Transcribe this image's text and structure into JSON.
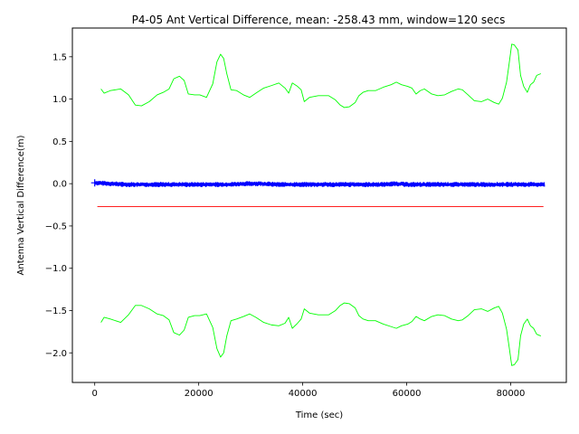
{
  "chart_data": {
    "type": "line",
    "title": "P4-05 Ant Vertical Difference, mean: -258.43 mm, window=120 secs",
    "xlabel": "Time (sec)",
    "ylabel": "Antenna Vertical Difference(m)",
    "xlim": [
      -4300,
      90700
    ],
    "ylim": [
      -2.35,
      1.84
    ],
    "x_ticks": [
      0,
      20000,
      40000,
      60000,
      80000
    ],
    "x_tick_labels": [
      "0",
      "20000",
      "40000",
      "60000",
      "80000"
    ],
    "y_ticks": [
      1.5,
      1.0,
      0.5,
      0.0,
      -0.5,
      -1.0,
      -1.5,
      -2.0
    ],
    "y_tick_labels": [
      "1.5",
      "1.0",
      "0.5",
      "0.0",
      "−0.5",
      "−1.0",
      "−1.5",
      "−2.0"
    ],
    "grid": false,
    "series": [
      {
        "color": "#00ff00",
        "x": [
          1200,
          1800,
          3000,
          5000,
          6500,
          7800,
          9000,
          10500,
          12000,
          13200,
          14300,
          15200,
          16300,
          17200,
          18000,
          19200,
          20200,
          21500,
          22700,
          23500,
          24200,
          24800,
          25400,
          26200,
          27300,
          28600,
          29800,
          31000,
          32500,
          34000,
          35400,
          36600,
          37300,
          38000,
          39000,
          39700,
          40300,
          41300,
          43000,
          45000,
          46300,
          47200,
          48000,
          49000,
          50100,
          50800,
          51600,
          52600,
          54000,
          55500,
          57000,
          58000,
          59000,
          60200,
          61000,
          61800,
          62600,
          63400,
          64800,
          66000,
          67300,
          68600,
          69900,
          70700,
          71800,
          73000,
          74400,
          75600,
          76800,
          77700,
          78400,
          79200,
          79700,
          80200,
          80700,
          81400,
          81900,
          82500,
          83200,
          83800,
          84400,
          85000,
          85800
        ],
        "values": [
          1.12,
          1.07,
          1.1,
          1.12,
          1.05,
          0.93,
          0.92,
          0.97,
          1.05,
          1.08,
          1.12,
          1.24,
          1.27,
          1.22,
          1.06,
          1.05,
          1.05,
          1.02,
          1.18,
          1.44,
          1.53,
          1.48,
          1.3,
          1.11,
          1.1,
          1.05,
          1.02,
          1.07,
          1.13,
          1.16,
          1.19,
          1.13,
          1.07,
          1.19,
          1.15,
          1.11,
          0.97,
          1.02,
          1.04,
          1.04,
          0.99,
          0.93,
          0.9,
          0.91,
          0.96,
          1.04,
          1.08,
          1.1,
          1.1,
          1.14,
          1.17,
          1.2,
          1.17,
          1.15,
          1.13,
          1.06,
          1.1,
          1.12,
          1.06,
          1.04,
          1.05,
          1.09,
          1.12,
          1.11,
          1.05,
          0.98,
          0.97,
          1.0,
          0.96,
          0.94,
          1.01,
          1.2,
          1.42,
          1.65,
          1.64,
          1.58,
          1.28,
          1.15,
          1.08,
          1.17,
          1.2,
          1.28,
          1.3
        ]
      },
      {
        "color": "#00ff00",
        "x": [
          1200,
          1800,
          3000,
          5000,
          6500,
          7800,
          9000,
          10500,
          12000,
          13200,
          14300,
          15200,
          16300,
          17200,
          18000,
          19200,
          20200,
          21500,
          22700,
          23500,
          24200,
          24800,
          25400,
          26200,
          27300,
          28600,
          29800,
          31000,
          32500,
          34000,
          35400,
          36600,
          37300,
          38000,
          39000,
          39700,
          40300,
          41300,
          43000,
          45000,
          46300,
          47200,
          48000,
          49000,
          50100,
          50800,
          51600,
          52600,
          54000,
          55500,
          57000,
          58000,
          59000,
          60200,
          61000,
          61800,
          62600,
          63400,
          64800,
          66000,
          67300,
          68600,
          69900,
          70700,
          71800,
          73000,
          74400,
          75600,
          76800,
          77700,
          78400,
          79200,
          79700,
          80200,
          80700,
          81400,
          81900,
          82500,
          83200,
          83800,
          84400,
          85000,
          85800
        ],
        "values": [
          -1.64,
          -1.58,
          -1.6,
          -1.64,
          -1.55,
          -1.44,
          -1.44,
          -1.48,
          -1.54,
          -1.56,
          -1.61,
          -1.76,
          -1.79,
          -1.73,
          -1.58,
          -1.56,
          -1.56,
          -1.54,
          -1.7,
          -1.95,
          -2.05,
          -2.0,
          -1.8,
          -1.62,
          -1.6,
          -1.57,
          -1.54,
          -1.58,
          -1.64,
          -1.67,
          -1.68,
          -1.65,
          -1.58,
          -1.71,
          -1.65,
          -1.6,
          -1.48,
          -1.53,
          -1.55,
          -1.55,
          -1.5,
          -1.44,
          -1.41,
          -1.42,
          -1.47,
          -1.56,
          -1.6,
          -1.62,
          -1.62,
          -1.66,
          -1.69,
          -1.71,
          -1.68,
          -1.66,
          -1.63,
          -1.57,
          -1.6,
          -1.62,
          -1.57,
          -1.55,
          -1.56,
          -1.6,
          -1.62,
          -1.61,
          -1.56,
          -1.49,
          -1.48,
          -1.51,
          -1.47,
          -1.45,
          -1.53,
          -1.72,
          -1.93,
          -2.15,
          -2.14,
          -2.08,
          -1.8,
          -1.66,
          -1.6,
          -1.68,
          -1.71,
          -1.78,
          -1.8
        ]
      },
      {
        "color": "#ff0000",
        "x": [
          500,
          86300
        ],
        "values": [
          -0.27,
          -0.27
        ]
      },
      {
        "color": "#0000ff",
        "x": [
          0,
          3000,
          6000,
          10000,
          15000,
          20000,
          25000,
          30000,
          32000,
          35000,
          40000,
          45000,
          50000,
          55000,
          58000,
          60000,
          65000,
          70000,
          75000,
          80000,
          86500
        ],
        "values": [
          0.01,
          0.0,
          -0.01,
          -0.01,
          -0.01,
          -0.01,
          -0.01,
          0.0,
          0.0,
          -0.01,
          -0.01,
          -0.01,
          -0.01,
          -0.01,
          0.0,
          -0.01,
          -0.01,
          -0.01,
          -0.01,
          -0.01,
          -0.01
        ],
        "noise_amplitude": 0.025
      }
    ]
  }
}
